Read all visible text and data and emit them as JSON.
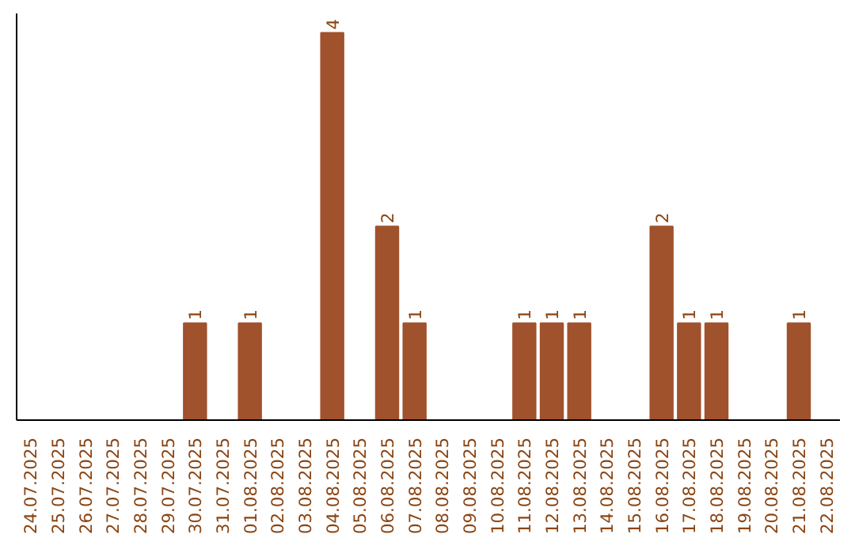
{
  "chart_data": {
    "type": "bar",
    "color": "#a0522d",
    "categories": [
      "24.07.2025",
      "25.07.2025",
      "26.07.2025",
      "27.07.2025",
      "28.07.2025",
      "29.07.2025",
      "30.07.2025",
      "31.07.2025",
      "01.08.2025",
      "02.08.2025",
      "03.08.2025",
      "04.08.2025",
      "05.08.2025",
      "06.08.2025",
      "07.08.2025",
      "08.08.2025",
      "09.08.2025",
      "10.08.2025",
      "11.08.2025",
      "12.08.2025",
      "13.08.2025",
      "14.08.2025",
      "15.08.2025",
      "16.08.2025",
      "17.08.2025",
      "18.08.2025",
      "19.08.2025",
      "20.08.2025",
      "21.08.2025",
      "22.08.2025"
    ],
    "values": [
      0,
      0,
      0,
      0,
      0,
      0,
      1,
      0,
      1,
      0,
      0,
      4,
      0,
      2,
      1,
      0,
      0,
      0,
      1,
      1,
      1,
      0,
      0,
      2,
      1,
      1,
      0,
      0,
      1,
      0
    ],
    "value_labels": [
      null,
      null,
      null,
      null,
      null,
      null,
      "1",
      null,
      "1",
      null,
      null,
      "4",
      null,
      "2",
      "1",
      null,
      null,
      null,
      "1",
      "1",
      "1",
      null,
      null,
      "2",
      "1",
      "1",
      null,
      null,
      "1",
      null
    ],
    "data_labels": false
  }
}
